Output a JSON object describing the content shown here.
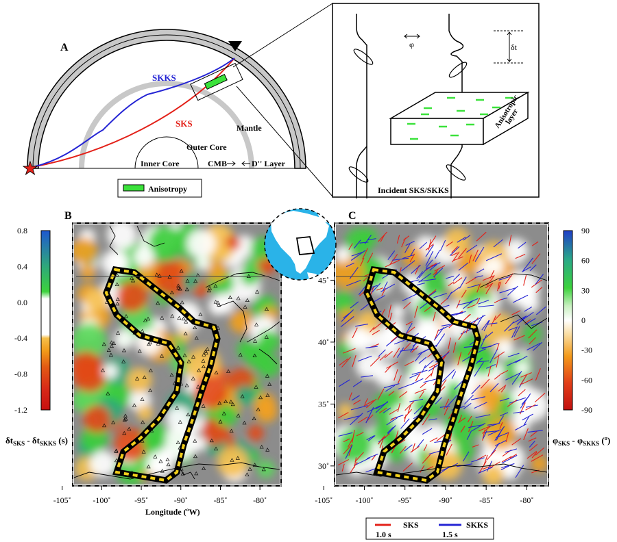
{
  "panelA": {
    "letter": "A",
    "skks_label": "SKKS",
    "sks_label": "SKS",
    "mantle_label": "Mantle",
    "outer_core_label": "Outer Core",
    "inner_core_label": "Inner Core",
    "cmb_label": "CMB",
    "dpp_label": "D'' Layer",
    "legend_label": "Anisotropy",
    "inset_phi": "φ",
    "inset_dt": "δt",
    "inset_layer": [
      "Anisotropic",
      "layer"
    ],
    "inset_incident": "Incident SKS/SKKS",
    "colors": {
      "sks": "#e32119",
      "skks": "#2424d4",
      "anisotropy": "#3be23b",
      "shell": "#c8c8c8"
    }
  },
  "panelB": {
    "letter": "B",
    "colorbar_ticks": [
      "0.8",
      "0.4",
      "0.0",
      "-0.4",
      "-0.8",
      "-1.2"
    ],
    "colorbar_range": [
      -1.2,
      0.8
    ],
    "colorbar_label_main": "δt",
    "colorbar_label_sub1": "SKS",
    "colorbar_label_mid": " - δt",
    "colorbar_label_sub2": "SKKS",
    "colorbar_label_unit": " (s)",
    "colorbar_colors": [
      "#d11010",
      "#e23a1a",
      "#f07d10",
      "#f5b830",
      "#ffffff",
      "#ffffff",
      "#3ccd3c",
      "#2ea87a",
      "#2266cc"
    ]
  },
  "panelC": {
    "letter": "C",
    "colorbar_ticks": [
      "90",
      "60",
      "30",
      "0",
      "-30",
      "-60",
      "-90"
    ],
    "colorbar_range": [
      -90,
      90
    ],
    "colorbar_label_main": "φ",
    "colorbar_label_sub1": "SKS",
    "colorbar_label_mid": " - φ",
    "colorbar_label_sub2": "SKKS",
    "colorbar_label_unit": " (º)",
    "lat_ticks": [
      "45˚",
      "40˚",
      "35˚",
      "30˚"
    ],
    "legend": [
      {
        "name": "SKS",
        "scale": "1.0 s",
        "color": "#e32119"
      },
      {
        "name": "SKKS",
        "scale": "1.5 s",
        "color": "#2424d4"
      }
    ]
  },
  "maps": {
    "lon_ticks": [
      "-105˚",
      "-100˚",
      "-95˚",
      "-90˚",
      "-85˚",
      "-80˚"
    ],
    "lon_values": [
      -105,
      -100,
      -95,
      -90,
      -85,
      -80
    ],
    "lon_range": [
      -103.5,
      -77.5
    ],
    "lat_range": [
      28.5,
      49.5
    ],
    "xlabel": "Longitude (ºW)",
    "background": "#8c8c8c"
  },
  "globe": {
    "ocean": "#2ab3e8",
    "land": "#ffffff"
  }
}
